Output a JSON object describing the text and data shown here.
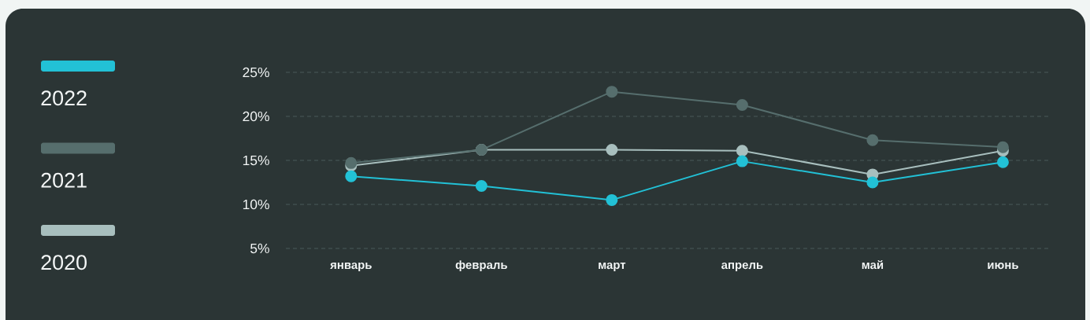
{
  "chart_data": {
    "type": "line",
    "categories": [
      "январь",
      "февраль",
      "март",
      "апрель",
      "май",
      "июнь"
    ],
    "series": [
      {
        "name": "2022",
        "color": "#22c1d6",
        "values": [
          13.2,
          12.1,
          10.5,
          14.9,
          12.5,
          14.8
        ]
      },
      {
        "name": "2021",
        "color": "#566e6d",
        "values": [
          14.7,
          16.2,
          22.8,
          21.3,
          17.3,
          16.5
        ]
      },
      {
        "name": "2020",
        "color": "#a8bfbe",
        "values": [
          14.4,
          16.2,
          16.2,
          16.1,
          13.4,
          16.1
        ]
      }
    ],
    "ylim": [
      5,
      25
    ],
    "yticks": [
      {
        "value": 5,
        "label": "5%"
      },
      {
        "value": 10,
        "label": "10%"
      },
      {
        "value": 15,
        "label": "15%"
      },
      {
        "value": 20,
        "label": "20%"
      },
      {
        "value": 25,
        "label": "25%"
      }
    ],
    "grid": "y",
    "legend": "left",
    "marker": "circle"
  }
}
